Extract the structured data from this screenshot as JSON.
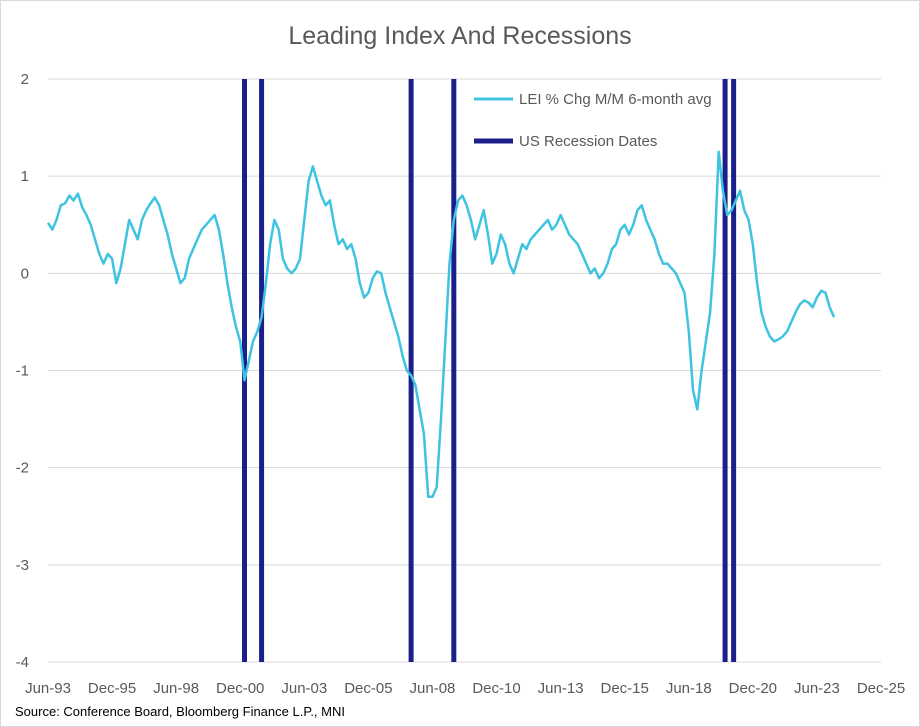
{
  "chart_data": {
    "type": "line",
    "title": "Leading Index And Recessions",
    "source": "Source: Conference Board, Bloomberg Finance L.P., MNI",
    "ylim": [
      -4,
      2
    ],
    "y_ticks": [
      "2",
      "1",
      "0",
      "-1",
      "-2",
      "-3",
      "-4"
    ],
    "y_tick_values": [
      2,
      1,
      0,
      -1,
      -2,
      -3,
      -4
    ],
    "x_ticks": [
      "Jun-93",
      "Dec-95",
      "Jun-98",
      "Dec-00",
      "Jun-03",
      "Dec-05",
      "Jun-08",
      "Dec-10",
      "Jun-13",
      "Dec-15",
      "Jun-18",
      "Dec-20",
      "Jun-23",
      "Dec-25"
    ],
    "x_range": [
      "1993-06",
      "2025-12"
    ],
    "grid": "horizontal",
    "legend_position": "top-right",
    "legend": [
      "LEI % Chg M/M 6-month avg",
      "US Recession Dates"
    ],
    "colors": {
      "lei": "#3ec3e0",
      "recession": "#1a1f8c",
      "grid": "#d9d9d9",
      "text": "#595959"
    },
    "series": [
      {
        "name": "LEI % Chg M/M 6-month avg",
        "points": [
          [
            "1993-06",
            0.52
          ],
          [
            "1993-08",
            0.45
          ],
          [
            "1993-10",
            0.55
          ],
          [
            "1993-12",
            0.7
          ],
          [
            "1994-02",
            0.72
          ],
          [
            "1994-04",
            0.8
          ],
          [
            "1994-06",
            0.75
          ],
          [
            "1994-08",
            0.82
          ],
          [
            "1994-10",
            0.68
          ],
          [
            "1994-12",
            0.6
          ],
          [
            "1995-02",
            0.5
          ],
          [
            "1995-04",
            0.35
          ],
          [
            "1995-06",
            0.2
          ],
          [
            "1995-08",
            0.1
          ],
          [
            "1995-10",
            0.2
          ],
          [
            "1995-12",
            0.15
          ],
          [
            "1996-02",
            -0.1
          ],
          [
            "1996-04",
            0.05
          ],
          [
            "1996-06",
            0.3
          ],
          [
            "1996-08",
            0.55
          ],
          [
            "1996-10",
            0.45
          ],
          [
            "1996-12",
            0.35
          ],
          [
            "1997-02",
            0.55
          ],
          [
            "1997-04",
            0.65
          ],
          [
            "1997-06",
            0.72
          ],
          [
            "1997-08",
            0.78
          ],
          [
            "1997-10",
            0.7
          ],
          [
            "1997-12",
            0.55
          ],
          [
            "1998-02",
            0.4
          ],
          [
            "1998-04",
            0.2
          ],
          [
            "1998-06",
            0.05
          ],
          [
            "1998-08",
            -0.1
          ],
          [
            "1998-10",
            -0.05
          ],
          [
            "1998-12",
            0.15
          ],
          [
            "1999-02",
            0.25
          ],
          [
            "1999-04",
            0.35
          ],
          [
            "1999-06",
            0.45
          ],
          [
            "1999-08",
            0.5
          ],
          [
            "1999-10",
            0.55
          ],
          [
            "1999-12",
            0.6
          ],
          [
            "2000-02",
            0.45
          ],
          [
            "2000-04",
            0.2
          ],
          [
            "2000-06",
            -0.1
          ],
          [
            "2000-08",
            -0.35
          ],
          [
            "2000-10",
            -0.55
          ],
          [
            "2000-12",
            -0.7
          ],
          [
            "2001-02",
            -1.1
          ],
          [
            "2001-04",
            -0.9
          ],
          [
            "2001-06",
            -0.7
          ],
          [
            "2001-08",
            -0.6
          ],
          [
            "2001-10",
            -0.45
          ],
          [
            "2001-12",
            -0.1
          ],
          [
            "2002-02",
            0.3
          ],
          [
            "2002-04",
            0.55
          ],
          [
            "2002-06",
            0.45
          ],
          [
            "2002-08",
            0.15
          ],
          [
            "2002-10",
            0.05
          ],
          [
            "2002-12",
            0.0
          ],
          [
            "2003-02",
            0.05
          ],
          [
            "2003-04",
            0.15
          ],
          [
            "2003-06",
            0.55
          ],
          [
            "2003-08",
            0.95
          ],
          [
            "2003-10",
            1.1
          ],
          [
            "2003-12",
            0.95
          ],
          [
            "2004-02",
            0.8
          ],
          [
            "2004-04",
            0.7
          ],
          [
            "2004-06",
            0.75
          ],
          [
            "2004-08",
            0.5
          ],
          [
            "2004-10",
            0.3
          ],
          [
            "2004-12",
            0.35
          ],
          [
            "2005-02",
            0.25
          ],
          [
            "2005-04",
            0.3
          ],
          [
            "2005-06",
            0.15
          ],
          [
            "2005-08",
            -0.1
          ],
          [
            "2005-10",
            -0.25
          ],
          [
            "2005-12",
            -0.2
          ],
          [
            "2006-02",
            -0.05
          ],
          [
            "2006-04",
            0.02
          ],
          [
            "2006-06",
            0.0
          ],
          [
            "2006-08",
            -0.2
          ],
          [
            "2006-10",
            -0.35
          ],
          [
            "2006-12",
            -0.5
          ],
          [
            "2007-02",
            -0.65
          ],
          [
            "2007-04",
            -0.85
          ],
          [
            "2007-06",
            -1.0
          ],
          [
            "2007-08",
            -1.05
          ],
          [
            "2007-10",
            -1.15
          ],
          [
            "2007-12",
            -1.4
          ],
          [
            "2008-02",
            -1.65
          ],
          [
            "2008-04",
            -2.3
          ],
          [
            "2008-06",
            -2.3
          ],
          [
            "2008-08",
            -2.2
          ],
          [
            "2008-10",
            -1.5
          ],
          [
            "2008-12",
            -0.7
          ],
          [
            "2009-02",
            0.1
          ],
          [
            "2009-04",
            0.55
          ],
          [
            "2009-06",
            0.75
          ],
          [
            "2009-08",
            0.8
          ],
          [
            "2009-10",
            0.7
          ],
          [
            "2009-12",
            0.55
          ],
          [
            "2010-02",
            0.35
          ],
          [
            "2010-04",
            0.5
          ],
          [
            "2010-06",
            0.65
          ],
          [
            "2010-08",
            0.4
          ],
          [
            "2010-10",
            0.1
          ],
          [
            "2010-12",
            0.2
          ],
          [
            "2011-02",
            0.4
          ],
          [
            "2011-04",
            0.3
          ],
          [
            "2011-06",
            0.1
          ],
          [
            "2011-08",
            0.0
          ],
          [
            "2011-10",
            0.15
          ],
          [
            "2011-12",
            0.3
          ],
          [
            "2012-02",
            0.25
          ],
          [
            "2012-04",
            0.35
          ],
          [
            "2012-06",
            0.4
          ],
          [
            "2012-08",
            0.45
          ],
          [
            "2012-10",
            0.5
          ],
          [
            "2012-12",
            0.55
          ],
          [
            "2013-02",
            0.45
          ],
          [
            "2013-04",
            0.5
          ],
          [
            "2013-06",
            0.6
          ],
          [
            "2013-08",
            0.5
          ],
          [
            "2013-10",
            0.4
          ],
          [
            "2013-12",
            0.35
          ],
          [
            "2014-02",
            0.3
          ],
          [
            "2014-04",
            0.2
          ],
          [
            "2014-06",
            0.1
          ],
          [
            "2014-08",
            0.0
          ],
          [
            "2014-10",
            0.05
          ],
          [
            "2014-12",
            -0.05
          ],
          [
            "2015-02",
            0.0
          ],
          [
            "2015-04",
            0.1
          ],
          [
            "2015-06",
            0.25
          ],
          [
            "2015-08",
            0.3
          ],
          [
            "2015-10",
            0.45
          ],
          [
            "2015-12",
            0.5
          ],
          [
            "2016-02",
            0.4
          ],
          [
            "2016-04",
            0.5
          ],
          [
            "2016-06",
            0.65
          ],
          [
            "2016-08",
            0.7
          ],
          [
            "2016-10",
            0.55
          ],
          [
            "2016-12",
            0.45
          ],
          [
            "2017-02",
            0.35
          ],
          [
            "2017-04",
            0.2
          ],
          [
            "2017-06",
            0.1
          ],
          [
            "2017-08",
            0.1
          ],
          [
            "2017-10",
            0.05
          ],
          [
            "2017-12",
            0.0
          ],
          [
            "2018-02",
            -0.1
          ],
          [
            "2018-04",
            -0.2
          ],
          [
            "2018-06",
            -0.6
          ],
          [
            "2018-08",
            -1.2
          ],
          [
            "2018-10",
            -1.4
          ],
          [
            "2018-12",
            -1.0
          ],
          [
            "2019-02",
            -0.7
          ],
          [
            "2019-04",
            -0.4
          ],
          [
            "2019-06",
            0.2
          ],
          [
            "2019-08",
            1.25
          ],
          [
            "2019-10",
            0.85
          ],
          [
            "2019-12",
            0.6
          ],
          [
            "2020-02",
            0.65
          ],
          [
            "2020-04",
            0.75
          ],
          [
            "2020-06",
            0.85
          ],
          [
            "2020-08",
            0.65
          ],
          [
            "2020-10",
            0.55
          ],
          [
            "2020-12",
            0.3
          ],
          [
            "2021-02",
            -0.1
          ],
          [
            "2021-04",
            -0.4
          ],
          [
            "2021-06",
            -0.55
          ],
          [
            "2021-08",
            -0.65
          ],
          [
            "2021-10",
            -0.7
          ],
          [
            "2021-12",
            -0.68
          ],
          [
            "2022-02",
            -0.65
          ],
          [
            "2022-04",
            -0.6
          ],
          [
            "2022-06",
            -0.5
          ],
          [
            "2022-08",
            -0.4
          ],
          [
            "2022-10",
            -0.32
          ],
          [
            "2022-12",
            -0.28
          ],
          [
            "2023-02",
            -0.3
          ],
          [
            "2023-04",
            -0.35
          ],
          [
            "2023-06",
            -0.25
          ],
          [
            "2023-08",
            -0.18
          ],
          [
            "2023-10",
            -0.2
          ],
          [
            "2023-12",
            -0.35
          ],
          [
            "2024-02",
            -0.45
          ]
        ]
      }
    ],
    "recessions": [
      [
        "2001-02",
        "2001-10"
      ],
      [
        "2007-08",
        "2009-04"
      ],
      [
        "2019-11",
        "2020-03"
      ]
    ]
  }
}
